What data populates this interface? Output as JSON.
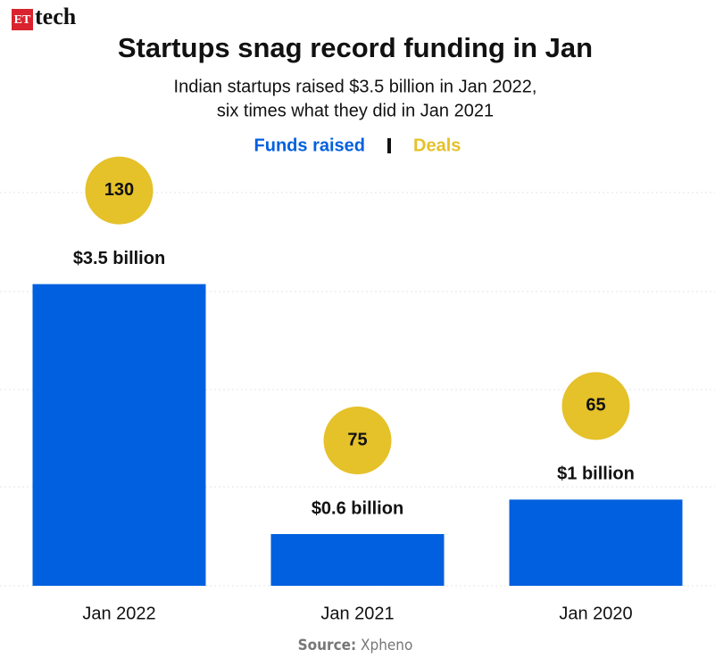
{
  "brand": {
    "badge": "ET",
    "name": "tech"
  },
  "chart_data": {
    "type": "bar",
    "title": "Startups snag record funding in Jan",
    "subtitle": [
      "Indian startups raised $3.5 billion in Jan 2022,",
      "six times what they did in Jan 2021"
    ],
    "categories": [
      "Jan 2022",
      "Jan 2021",
      "Jan 2020"
    ],
    "series": [
      {
        "name": "Funds raised",
        "color": "#0060df",
        "values": [
          3.5,
          0.6,
          1
        ],
        "value_labels": [
          "$3.5 billion",
          "$0.6 billion",
          "$1 billion"
        ]
      },
      {
        "name": "Deals",
        "color": "#e5c12a",
        "values": [
          130,
          75,
          65
        ]
      }
    ],
    "ylim": [
      0,
      4.5
    ],
    "source_label": "Source:",
    "source": "Xpheno"
  }
}
